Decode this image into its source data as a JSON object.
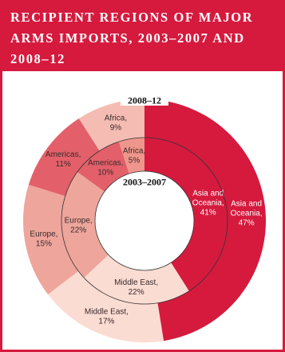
{
  "chart_data": {
    "type": "nested-donut",
    "title": "RECIPIENT REGIONS OF MAJOR ARMS IMPORTS, 2003–2007 AND 2008–12",
    "series": [
      {
        "name": "2008–12",
        "ring": "outer",
        "labels": [
          "Asia and Oceania, 47%",
          "Middle East, 17%",
          "Europe, 15%",
          "Americas, 11%",
          "Africa, 9%"
        ],
        "values": [
          47,
          17,
          15,
          11,
          9
        ],
        "colors": [
          "#d51a3e",
          "#fbdcd3",
          "#eea59b",
          "#e3606a",
          "#f5bcb3"
        ]
      },
      {
        "name": "2003–2007",
        "ring": "inner",
        "labels": [
          "Asia and Oceania, 41%",
          "Middle East, 22%",
          "Europe, 22%",
          "Americas, 10%",
          "Africa, 5%"
        ],
        "values": [
          41,
          22,
          22,
          10,
          5
        ],
        "colors": [
          "#d51a3e",
          "#fbdcd3",
          "#eea59b",
          "#e3606a",
          "#ef968c"
        ]
      }
    ]
  }
}
